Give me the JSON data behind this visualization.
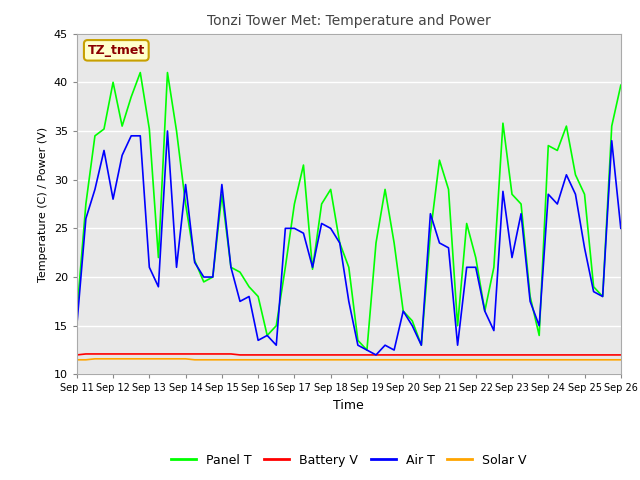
{
  "title": "Tonzi Tower Met: Temperature and Power",
  "xlabel": "Time",
  "ylabel": "Temperature (C) / Power (V)",
  "ylim": [
    10,
    45
  ],
  "annotation_text": "TZ_tmet",
  "annotation_color": "#8B0000",
  "annotation_bg": "#FFFFCC",
  "annotation_border": "#C8A000",
  "x_tick_labels": [
    "Sep 11",
    "Sep 12",
    "Sep 13",
    "Sep 14",
    "Sep 15",
    "Sep 16",
    "Sep 17",
    "Sep 18",
    "Sep 19",
    "Sep 20",
    "Sep 21",
    "Sep 22",
    "Sep 23",
    "Sep 24",
    "Sep 25",
    "Sep 26"
  ],
  "legend_colors": [
    "#00FF00",
    "#FF0000",
    "#0000FF",
    "#FFA500"
  ],
  "legend_labels": [
    "Panel T",
    "Battery V",
    "Air T",
    "Solar V"
  ],
  "fig_bg": "#FFFFFF",
  "axes_bg": "#E8E8E8",
  "grid_color": "#FFFFFF",
  "panel_t": [
    16.2,
    27.5,
    34.5,
    35.2,
    40.0,
    35.5,
    38.5,
    41.0,
    35.2,
    22.0,
    41.0,
    35.0,
    27.5,
    21.7,
    19.5,
    20.0,
    28.5,
    21.0,
    20.5,
    19.0,
    18.0,
    14.0,
    15.0,
    21.0,
    27.5,
    31.5,
    20.8,
    27.5,
    29.0,
    23.5,
    21.0,
    13.5,
    12.5,
    23.5,
    29.0,
    23.5,
    16.5,
    15.5,
    13.0,
    24.5,
    32.0,
    29.0,
    15.0,
    25.5,
    22.0,
    16.5,
    21.0,
    35.8,
    28.5,
    27.5,
    18.0,
    14.0,
    33.5,
    33.0,
    35.5,
    30.5,
    28.5,
    19.0,
    18.0,
    35.5,
    39.7
  ],
  "air_t": [
    15.0,
    26.0,
    29.0,
    33.0,
    28.0,
    32.5,
    34.5,
    34.5,
    21.0,
    19.0,
    35.0,
    21.0,
    29.5,
    21.5,
    20.0,
    20.0,
    29.5,
    21.0,
    17.5,
    18.0,
    13.5,
    14.0,
    13.0,
    25.0,
    25.0,
    24.5,
    21.0,
    25.5,
    25.0,
    23.5,
    17.5,
    13.0,
    12.5,
    12.0,
    13.0,
    12.5,
    16.5,
    15.0,
    13.0,
    26.5,
    23.5,
    23.0,
    13.0,
    21.0,
    21.0,
    16.5,
    14.5,
    28.8,
    22.0,
    26.5,
    17.5,
    15.0,
    28.5,
    27.5,
    30.5,
    28.5,
    23.0,
    18.5,
    18.0,
    34.0,
    25.0
  ],
  "battery_v": [
    12.0,
    12.1,
    12.1,
    12.1,
    12.1,
    12.1,
    12.1,
    12.1,
    12.1,
    12.1,
    12.1,
    12.1,
    12.1,
    12.1,
    12.1,
    12.1,
    12.1,
    12.1,
    12.0,
    12.0,
    12.0,
    12.0,
    12.0,
    12.0,
    12.0,
    12.0,
    12.0,
    12.0,
    12.0,
    12.0,
    12.0,
    12.0,
    12.0,
    12.0,
    12.0,
    12.0,
    12.0,
    12.0,
    12.0,
    12.0,
    12.0,
    12.0,
    12.0,
    12.0,
    12.0,
    12.0,
    12.0,
    12.0,
    12.0,
    12.0,
    12.0,
    12.0,
    12.0,
    12.0,
    12.0,
    12.0,
    12.0,
    12.0,
    12.0,
    12.0,
    12.0
  ],
  "solar_v": [
    11.5,
    11.5,
    11.6,
    11.6,
    11.6,
    11.6,
    11.6,
    11.6,
    11.6,
    11.6,
    11.6,
    11.6,
    11.6,
    11.5,
    11.5,
    11.5,
    11.5,
    11.5,
    11.5,
    11.5,
    11.5,
    11.5,
    11.5,
    11.5,
    11.5,
    11.5,
    11.5,
    11.5,
    11.5,
    11.5,
    11.5,
    11.5,
    11.5,
    11.5,
    11.5,
    11.5,
    11.5,
    11.5,
    11.5,
    11.5,
    11.5,
    11.5,
    11.5,
    11.5,
    11.5,
    11.5,
    11.5,
    11.5,
    11.5,
    11.5,
    11.5,
    11.5,
    11.5,
    11.5,
    11.5,
    11.5,
    11.5,
    11.5,
    11.5,
    11.5,
    11.5
  ]
}
